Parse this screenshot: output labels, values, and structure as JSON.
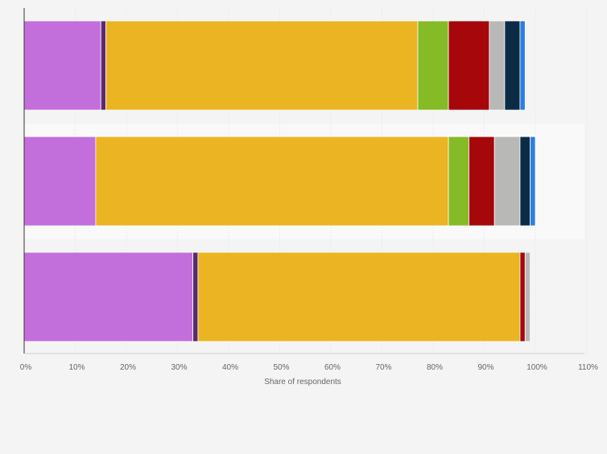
{
  "chart_data": {
    "type": "bar",
    "orientation": "horizontal",
    "stacked": true,
    "title": "",
    "xlabel": "Share of respondents",
    "ylabel": "",
    "xlim": [
      0,
      110
    ],
    "x_ticks": [
      "0%",
      "10%",
      "20%",
      "30%",
      "40%",
      "50%",
      "60%",
      "70%",
      "80%",
      "90%",
      "100%",
      "110%"
    ],
    "grid": "vertical",
    "legend": "none",
    "categories": [
      "",
      "",
      ""
    ],
    "series": [
      {
        "color": "#c36fdb",
        "values": [
          15,
          14,
          33
        ]
      },
      {
        "color": "#5c2a6b",
        "values": [
          1,
          0,
          1
        ]
      },
      {
        "color": "#eab422",
        "values": [
          61,
          69,
          63
        ]
      },
      {
        "color": "#84bb26",
        "values": [
          6,
          4,
          0
        ]
      },
      {
        "color": "#a5070b",
        "values": [
          8,
          5,
          1
        ]
      },
      {
        "color": "#b8b8b6",
        "values": [
          3,
          5,
          1
        ]
      },
      {
        "color": "#0c2c46",
        "values": [
          3,
          2,
          0
        ]
      },
      {
        "color": "#2c7fe0",
        "values": [
          1,
          1,
          0
        ]
      }
    ]
  }
}
